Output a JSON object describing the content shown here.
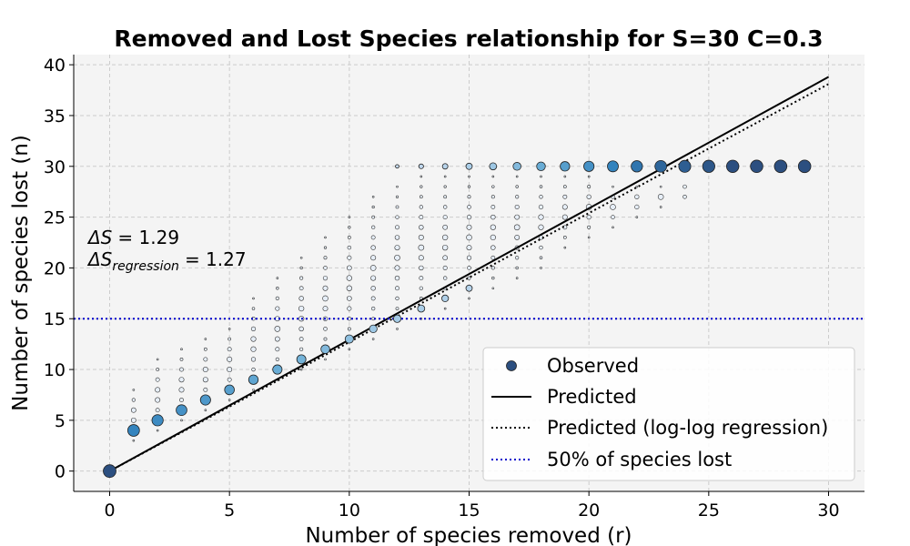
{
  "chart_data": {
    "type": "scatter",
    "title": "Removed and Lost Species relationship for S=30 C=0.3",
    "xlabel": "Number of species removed (r)",
    "ylabel": "Number of species lost (n)",
    "xlim": [
      -1.5,
      31.5
    ],
    "ylim": [
      -2,
      41
    ],
    "xticks": [
      0,
      5,
      10,
      15,
      20,
      25,
      30
    ],
    "yticks": [
      0,
      5,
      10,
      15,
      20,
      25,
      30,
      35,
      40
    ],
    "grid": true,
    "legend_position": "lower-right",
    "annotation": {
      "delta_s_label": "ΔS",
      "delta_s_value": "= 1.29",
      "delta_s_reg_label": "ΔS",
      "delta_s_reg_sub": "regression",
      "delta_s_reg_value": "= 1.27"
    },
    "series": [
      {
        "name": "Observed",
        "kind": "scatter",
        "color_scale": [
          "#c6dbef",
          "#6baed6",
          "#3182bd",
          "#2c4f80"
        ],
        "note_size": "marker size ~ frequency",
        "main_points": [
          {
            "x": 0,
            "y": 0,
            "s": 1.0,
            "c": 1.0
          },
          {
            "x": 1,
            "y": 4,
            "s": 0.9,
            "c": 0.65
          },
          {
            "x": 2,
            "y": 5,
            "s": 0.85,
            "c": 0.6
          },
          {
            "x": 3,
            "y": 6,
            "s": 0.8,
            "c": 0.55
          },
          {
            "x": 4,
            "y": 7,
            "s": 0.75,
            "c": 0.5
          },
          {
            "x": 5,
            "y": 8,
            "s": 0.7,
            "c": 0.45
          },
          {
            "x": 6,
            "y": 9,
            "s": 0.68,
            "c": 0.4
          },
          {
            "x": 7,
            "y": 10,
            "s": 0.66,
            "c": 0.35
          },
          {
            "x": 8,
            "y": 11,
            "s": 0.64,
            "c": 0.3
          },
          {
            "x": 9,
            "y": 12,
            "s": 0.6,
            "c": 0.25
          },
          {
            "x": 10,
            "y": 13,
            "s": 0.56,
            "c": 0.2
          },
          {
            "x": 11,
            "y": 14,
            "s": 0.5,
            "c": 0.15
          },
          {
            "x": 12,
            "y": 15,
            "s": 0.48,
            "c": 0.12
          },
          {
            "x": 13,
            "y": 16,
            "s": 0.44,
            "c": 0.1
          },
          {
            "x": 14,
            "y": 17,
            "s": 0.4,
            "c": 0.08
          },
          {
            "x": 15,
            "y": 18,
            "s": 0.36,
            "c": 0.06
          },
          {
            "x": 12,
            "y": 30,
            "s": 0.08,
            "c": 0.0
          },
          {
            "x": 13,
            "y": 30,
            "s": 0.2,
            "c": 0.02
          },
          {
            "x": 14,
            "y": 30,
            "s": 0.28,
            "c": 0.05
          },
          {
            "x": 15,
            "y": 30,
            "s": 0.36,
            "c": 0.1
          },
          {
            "x": 16,
            "y": 30,
            "s": 0.44,
            "c": 0.15
          },
          {
            "x": 17,
            "y": 30,
            "s": 0.52,
            "c": 0.25
          },
          {
            "x": 18,
            "y": 30,
            "s": 0.6,
            "c": 0.35
          },
          {
            "x": 19,
            "y": 30,
            "s": 0.68,
            "c": 0.45
          },
          {
            "x": 20,
            "y": 30,
            "s": 0.76,
            "c": 0.55
          },
          {
            "x": 21,
            "y": 30,
            "s": 0.82,
            "c": 0.65
          },
          {
            "x": 22,
            "y": 30,
            "s": 0.86,
            "c": 0.75
          },
          {
            "x": 23,
            "y": 30,
            "s": 0.9,
            "c": 0.85
          },
          {
            "x": 24,
            "y": 30,
            "s": 0.93,
            "c": 0.9
          },
          {
            "x": 25,
            "y": 30,
            "s": 0.95,
            "c": 0.95
          },
          {
            "x": 26,
            "y": 30,
            "s": 0.96,
            "c": 1.0
          },
          {
            "x": 27,
            "y": 30,
            "s": 0.97,
            "c": 1.0
          },
          {
            "x": 28,
            "y": 30,
            "s": 0.98,
            "c": 1.0
          },
          {
            "x": 29,
            "y": 30,
            "s": 0.98,
            "c": 1.0
          }
        ],
        "faint_columns": [
          {
            "x": 1,
            "ymin": 3,
            "ymax": 8
          },
          {
            "x": 2,
            "ymin": 4,
            "ymax": 11
          },
          {
            "x": 3,
            "ymin": 5,
            "ymax": 12
          },
          {
            "x": 4,
            "ymin": 6,
            "ymax": 13
          },
          {
            "x": 5,
            "ymin": 7,
            "ymax": 14
          },
          {
            "x": 6,
            "ymin": 8,
            "ymax": 17
          },
          {
            "x": 7,
            "ymin": 9,
            "ymax": 19
          },
          {
            "x": 8,
            "ymin": 10,
            "ymax": 21
          },
          {
            "x": 9,
            "ymin": 11,
            "ymax": 23
          },
          {
            "x": 10,
            "ymin": 12,
            "ymax": 25
          },
          {
            "x": 11,
            "ymin": 13,
            "ymax": 27
          },
          {
            "x": 12,
            "ymin": 14,
            "ymax": 28
          },
          {
            "x": 13,
            "ymin": 15,
            "ymax": 29
          },
          {
            "x": 14,
            "ymin": 16,
            "ymax": 29
          },
          {
            "x": 15,
            "ymin": 17,
            "ymax": 29
          },
          {
            "x": 16,
            "ymin": 18,
            "ymax": 29
          },
          {
            "x": 17,
            "ymin": 19,
            "ymax": 29
          },
          {
            "x": 18,
            "ymin": 20,
            "ymax": 29
          },
          {
            "x": 19,
            "ymin": 22,
            "ymax": 29
          },
          {
            "x": 20,
            "ymin": 23,
            "ymax": 29
          },
          {
            "x": 21,
            "ymin": 24,
            "ymax": 28
          },
          {
            "x": 22,
            "ymin": 25,
            "ymax": 28
          },
          {
            "x": 23,
            "ymin": 26,
            "ymax": 28
          },
          {
            "x": 24,
            "ymin": 27,
            "ymax": 28
          }
        ]
      },
      {
        "name": "Predicted",
        "kind": "line",
        "x": [
          0,
          30
        ],
        "y": [
          0,
          38.8
        ],
        "color": "#000000",
        "style": "solid"
      },
      {
        "name": "Predicted (log-log regression)",
        "kind": "line",
        "x": [
          0,
          30
        ],
        "y": [
          0,
          38.1
        ],
        "color": "#000000",
        "style": "dotted"
      },
      {
        "name": "50% of species lost",
        "kind": "hline",
        "y": 15,
        "color": "#0000cc",
        "style": "dotted"
      }
    ]
  },
  "legend": {
    "items": [
      {
        "label": "Observed",
        "marker": "circle"
      },
      {
        "label": "Predicted",
        "marker": "solid-line"
      },
      {
        "label": "Predicted (log-log regression)",
        "marker": "dotted-line"
      },
      {
        "label": "50% of species lost",
        "marker": "blue-dotted-line"
      }
    ]
  }
}
